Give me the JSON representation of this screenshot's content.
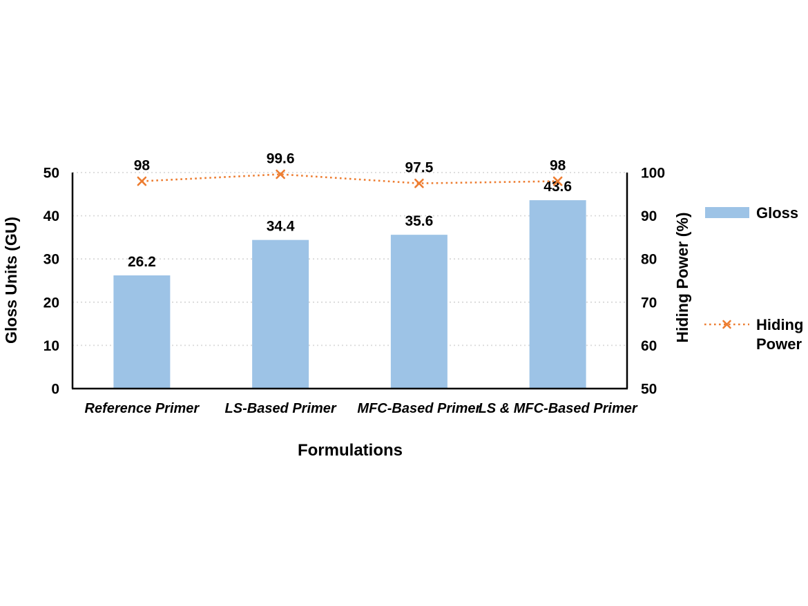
{
  "page": {
    "background": "#ffffff"
  },
  "chart_data": {
    "type": "bar+line",
    "categories": [
      "Reference Primer",
      "LS-Based Primer",
      "MFC-Based Primer",
      "LS & MFC-Based Primer"
    ],
    "series": [
      {
        "name": "Gloss",
        "type": "bar",
        "axis": "left",
        "values": [
          26.2,
          34.4,
          35.6,
          43.6
        ],
        "data_labels": [
          "26.2",
          "34.4",
          "35.6",
          "43.6"
        ],
        "color": "#9DC3E6"
      },
      {
        "name": "Hiding Power",
        "type": "line",
        "axis": "right",
        "line_style": "dotted",
        "marker": "x",
        "values": [
          98,
          99.6,
          97.5,
          98
        ],
        "data_labels": [
          "98",
          "99.6",
          "97.5",
          "98"
        ],
        "color": "#ED7D31"
      }
    ],
    "xlabel": "Formulations",
    "ylabel_left": "Gloss Units (GU)",
    "ylabel_right": "Hiding Power (%)",
    "ylim_left": [
      0,
      50
    ],
    "ylim_right": [
      50,
      100
    ],
    "yticks_left": [
      "0",
      "10",
      "20",
      "30",
      "40",
      "50"
    ],
    "ytick_values_left": [
      0,
      10,
      20,
      30,
      40,
      50
    ],
    "yticks_right": [
      "50",
      "60",
      "70",
      "80",
      "90",
      "100"
    ],
    "ytick_values_right": [
      50,
      60,
      70,
      80,
      90,
      100
    ],
    "grid": "horizontal-dotted",
    "legend": {
      "position": "right",
      "items": [
        {
          "label_lines": [
            "Gloss"
          ],
          "swatch": "bar"
        },
        {
          "label_lines": [
            "Hiding",
            "Power"
          ],
          "swatch": "dotted-line-x"
        }
      ]
    },
    "colors": {
      "bar_fill": "#9DC3E6",
      "line_stroke": "#ED7D31",
      "gridline": "#D9D9D9",
      "axis_line": "#000000",
      "text": "#000000"
    }
  }
}
